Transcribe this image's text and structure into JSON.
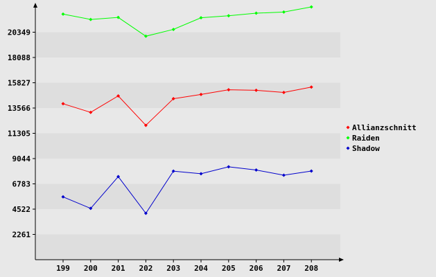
{
  "chart_data": {
    "type": "line",
    "title": "",
    "xlabel": "",
    "ylabel": "",
    "x": [
      "199",
      "200",
      "201",
      "202",
      "203",
      "204",
      "205",
      "206",
      "207",
      "208"
    ],
    "yticks": [
      2261,
      4522,
      6783,
      9044,
      11305,
      13566,
      15827,
      18088,
      20349
    ],
    "ylim": [
      0,
      22610
    ],
    "grid": "alternating horizontal bands",
    "legend_position": "right",
    "series": [
      {
        "name": "Allianzschnitt",
        "color": "#ff0000",
        "values": [
          13950,
          13180,
          14650,
          12020,
          14400,
          14780,
          15200,
          15150,
          14960,
          15440
        ]
      },
      {
        "name": "Raiden",
        "color": "#00ff00",
        "values": [
          21970,
          21490,
          21670,
          19990,
          20600,
          21640,
          21820,
          22050,
          22150,
          22610
        ]
      },
      {
        "name": "Shadow",
        "color": "#0000cc",
        "values": [
          5620,
          4590,
          7430,
          4150,
          7920,
          7690,
          8310,
          8020,
          7560,
          7930
        ]
      }
    ]
  }
}
